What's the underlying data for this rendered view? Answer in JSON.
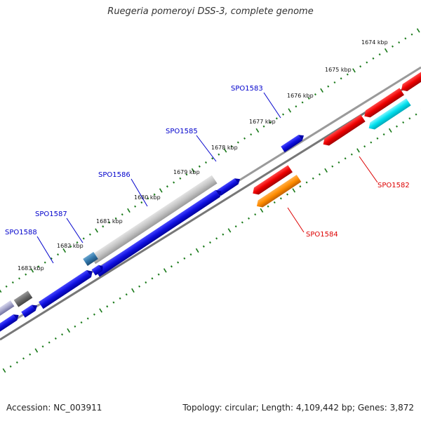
{
  "title": "Ruegeria pomeroyi DSS-3, complete genome",
  "footer": {
    "accession": "Accession: NC_003911",
    "summary": "Topology: circular; Length: 4,109,442 bp; Genes: 3,872"
  },
  "colors": {
    "tick": "#1a7a1a",
    "backbone": "#888888",
    "forward_label": "#0000cc",
    "reverse_label": "#dd0000",
    "blue": "#1010e0",
    "red": "#ee0000",
    "orange": "#ff8c00",
    "cyan": "#00e0ee",
    "gray": "#bbbbbb",
    "dark_gray": "#666666",
    "steel": "#3377aa"
  },
  "ruler": {
    "labels": [
      "1674 kbp",
      "1675 kbp",
      "1676 kbp",
      "1677 kbp",
      "1678 kbp",
      "1679 kbp",
      "1680 kbp",
      "1681 kbp",
      "1682 kbp",
      "1683 kbp"
    ]
  },
  "gene_labels": {
    "forward": [
      "SPO1583",
      "SPO1585",
      "SPO1586",
      "SPO1587",
      "SPO1588"
    ],
    "reverse": [
      "SPO1582",
      "SPO1584"
    ]
  }
}
